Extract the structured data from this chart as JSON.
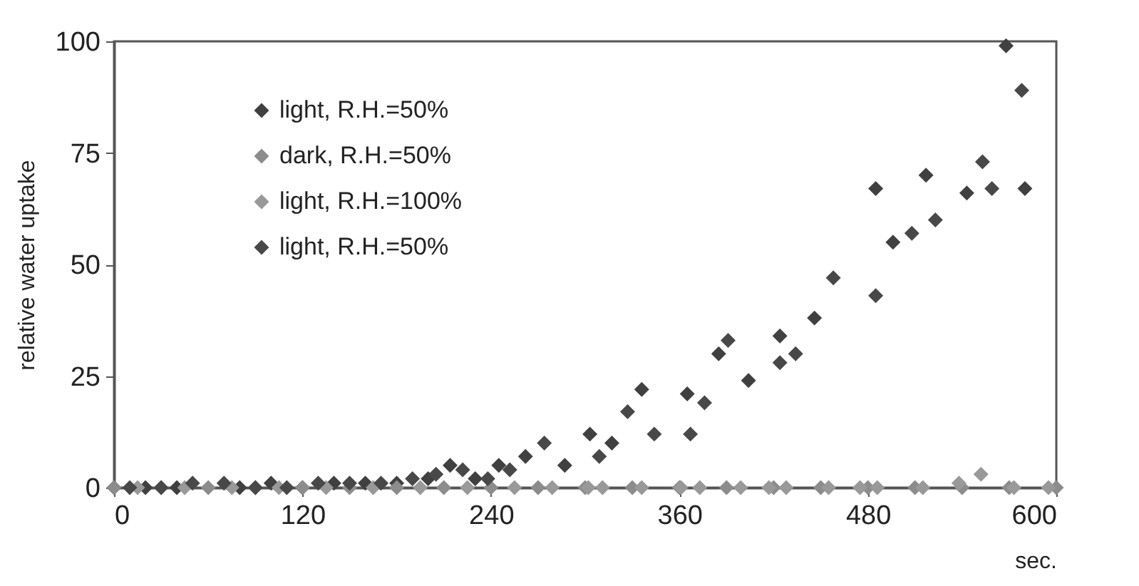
{
  "chart_data": {
    "type": "scatter",
    "xlabel": "sec.",
    "ylabel": "relative water uptake",
    "xlim": [
      0,
      600
    ],
    "xticks": [
      0,
      120,
      240,
      360,
      480,
      600
    ],
    "ylim": [
      0,
      100
    ],
    "yticks": [
      0,
      25,
      50,
      75,
      100
    ],
    "grid": false,
    "legend": "top left",
    "marker": "diamond",
    "series": [
      {
        "name": "light, R.H.=50%",
        "color": "#404040",
        "x": [
          0,
          20,
          40,
          80,
          100,
          120,
          140,
          160,
          180,
          200,
          214,
          230,
          245,
          262,
          287,
          303,
          317,
          336,
          365,
          385,
          404,
          424,
          446,
          485,
          496,
          517,
          543,
          568,
          580
        ],
        "values": [
          0,
          0,
          0,
          0,
          1,
          0,
          1,
          1,
          1,
          2,
          5,
          2,
          5,
          7,
          5,
          12,
          10,
          22,
          21,
          30,
          24,
          34,
          38,
          67,
          55,
          70,
          66,
          99,
          67
        ]
      },
      {
        "name": "dark, R.H.=50%",
        "color": "#8c8c8c",
        "x": [
          0,
          30,
          60,
          90,
          120,
          150,
          180,
          210,
          240,
          270,
          300,
          330,
          360,
          390,
          420,
          450,
          480,
          510,
          540,
          570,
          600
        ],
        "values": [
          0,
          0,
          0,
          0,
          0,
          0,
          0,
          0,
          0,
          0,
          0,
          0,
          0,
          0,
          0,
          0,
          0,
          0,
          0,
          0,
          0
        ]
      },
      {
        "name": "light, R.H.=100%",
        "color": "#999999",
        "x": [
          15,
          45,
          75,
          105,
          135,
          165,
          195,
          225,
          255,
          279,
          302,
          311,
          336,
          361,
          373,
          399,
          417,
          428,
          455,
          475,
          486,
          515,
          538,
          552,
          573,
          595
        ],
        "values": [
          0,
          0,
          0,
          0,
          0,
          0,
          0,
          0,
          0,
          0,
          0,
          0,
          0,
          0,
          0,
          0,
          0,
          0,
          0,
          0,
          0,
          0,
          1,
          3,
          0,
          0
        ]
      },
      {
        "name": "light, R.H.=50%",
        "color": "#484848",
        "x": [
          10,
          30,
          50,
          70,
          90,
          110,
          130,
          150,
          170,
          190,
          205,
          222,
          238,
          252,
          274,
          309,
          327,
          344,
          367,
          376,
          391,
          424,
          434,
          458,
          485,
          508,
          523,
          553,
          559,
          578
        ],
        "values": [
          0,
          0,
          1,
          1,
          0,
          0,
          1,
          1,
          1,
          2,
          3,
          4,
          2,
          4,
          10,
          7,
          17,
          12,
          12,
          19,
          33,
          28,
          30,
          47,
          43,
          57,
          60,
          73,
          67,
          89
        ]
      }
    ]
  }
}
